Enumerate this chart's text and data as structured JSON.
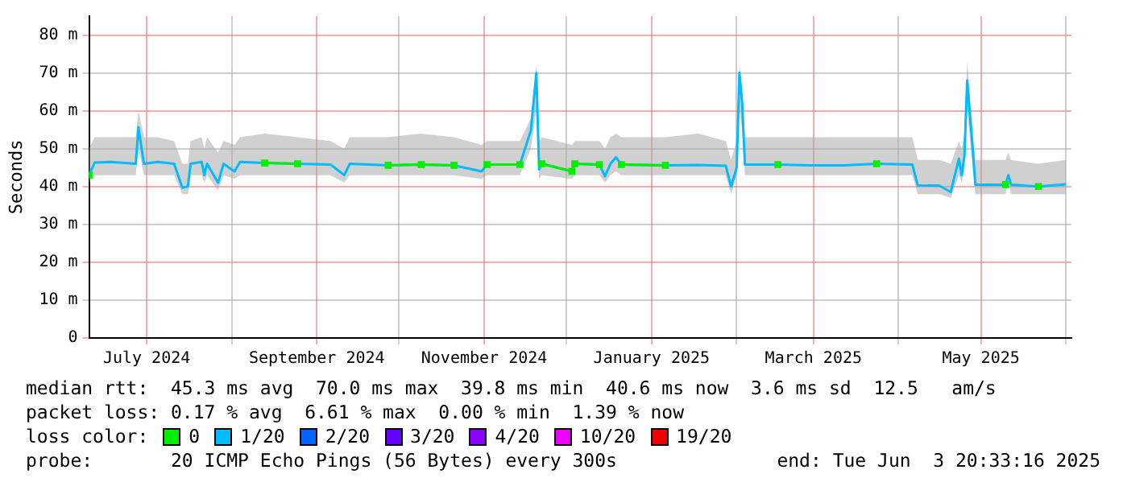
{
  "chart_data": {
    "type": "line",
    "ylabel": "Seconds",
    "x": [
      "2024-06-10",
      "2024-06-12",
      "2024-06-18",
      "2024-06-27",
      "2024-06-28",
      "2024-06-30",
      "2024-07-05",
      "2024-07-11",
      "2024-07-14",
      "2024-07-16",
      "2024-07-17",
      "2024-07-21",
      "2024-07-22",
      "2024-07-23",
      "2024-07-27",
      "2024-07-29",
      "2024-08-02",
      "2024-08-04",
      "2024-08-13",
      "2024-08-25",
      "2024-09-06",
      "2024-09-11",
      "2024-09-13",
      "2024-09-27",
      "2024-10-09",
      "2024-10-21",
      "2024-10-31",
      "2024-11-02",
      "2024-11-14",
      "2024-11-18",
      "2024-11-20",
      "2024-11-21",
      "2024-11-22",
      "2024-12-03",
      "2024-12-04",
      "2024-12-13",
      "2024-12-15",
      "2024-12-17",
      "2024-12-19",
      "2024-12-21",
      "2025-01-06",
      "2025-01-18",
      "2025-01-28",
      "2025-01-30",
      "2025-02-01",
      "2025-02-02",
      "2025-02-03",
      "2025-02-04",
      "2025-02-16",
      "2025-02-28",
      "2025-03-12",
      "2025-03-24",
      "2025-04-06",
      "2025-04-08",
      "2025-04-16",
      "2025-04-20",
      "2025-04-23",
      "2025-04-24",
      "2025-04-25",
      "2025-04-26",
      "2025-04-28",
      "2025-04-29",
      "2025-05-10",
      "2025-05-11",
      "2025-05-12",
      "2025-05-22",
      "2025-06-01"
    ],
    "series": [
      {
        "name": "0",
        "color": "#00ee00",
        "marker": "square",
        "values": [
          43,
          null,
          null,
          null,
          null,
          null,
          null,
          null,
          null,
          null,
          null,
          null,
          null,
          null,
          null,
          null,
          null,
          null,
          46.2,
          46,
          null,
          null,
          null,
          45.6,
          45.8,
          45.6,
          null,
          45.8,
          45.8,
          null,
          null,
          null,
          46,
          44,
          46,
          45.8,
          null,
          null,
          null,
          45.8,
          45.6,
          null,
          null,
          null,
          null,
          null,
          null,
          null,
          45.8,
          null,
          null,
          46,
          null,
          null,
          null,
          null,
          null,
          null,
          null,
          null,
          null,
          null,
          40.5,
          null,
          null,
          40,
          null
        ]
      },
      {
        "name": "1/20",
        "color": "#00bbff",
        "values": [
          43,
          46.3,
          46.5,
          46,
          55.6,
          46,
          46.5,
          46,
          39.7,
          40,
          46,
          46.5,
          43,
          46,
          41,
          46,
          44,
          46.5,
          46.2,
          46,
          45.8,
          43,
          46,
          45.6,
          45.8,
          45.6,
          44,
          45.8,
          45.8,
          54.8,
          70,
          44.5,
          46,
          44,
          46,
          45.8,
          42.7,
          46,
          47.7,
          45.8,
          45.6,
          45.7,
          45.5,
          40,
          45,
          70,
          62,
          45.8,
          45.8,
          45.6,
          45.6,
          46,
          45.8,
          40.3,
          40.2,
          38.5,
          47.4,
          43,
          48,
          68,
          50,
          40.5,
          40.5,
          43,
          40.5,
          40,
          40.6
        ],
        "lower": [
          41,
          43,
          43,
          43,
          50,
          43,
          43,
          43,
          38,
          38,
          43,
          43,
          41,
          43,
          39,
          43,
          42,
          43,
          43,
          43,
          43,
          41,
          43,
          43,
          43,
          43,
          42,
          43,
          43,
          50,
          60,
          42,
          43,
          42,
          43,
          43,
          41,
          43,
          44,
          43,
          43,
          43,
          43,
          38,
          43,
          60,
          55,
          43,
          43,
          43,
          43,
          43,
          43,
          38,
          38,
          37,
          43,
          41,
          44,
          60,
          45,
          38,
          38,
          41,
          38,
          38,
          38
        ],
        "upper": [
          50,
          53,
          53,
          53,
          60,
          53,
          53,
          52,
          46,
          46,
          52,
          53,
          50,
          53,
          49,
          52,
          51,
          53,
          54,
          53,
          52,
          50,
          53,
          53,
          54,
          53,
          51,
          52,
          52,
          58,
          72,
          52,
          53,
          51,
          52,
          52,
          50,
          53,
          54,
          53,
          53,
          54,
          52,
          47,
          52,
          72,
          66,
          53,
          53,
          53,
          53,
          53,
          53,
          47,
          47,
          46,
          52,
          50,
          54,
          73,
          55,
          47,
          47,
          49,
          47,
          46,
          47
        ]
      },
      {
        "name": "2/20",
        "color": "#0066ff",
        "values": [
          null,
          null,
          null,
          null,
          null,
          null,
          null,
          null,
          null,
          null,
          null,
          null,
          null,
          null,
          null,
          null,
          null,
          null,
          null,
          null,
          null,
          null,
          null,
          null,
          null,
          null,
          null,
          null,
          null,
          null,
          null,
          null,
          null,
          null,
          null,
          null,
          null,
          null,
          null,
          null,
          null,
          null,
          null,
          null,
          null,
          null,
          null,
          null,
          null,
          null,
          null,
          null,
          null,
          null,
          null,
          null,
          null,
          null,
          null,
          null,
          null,
          null,
          null,
          null,
          null,
          null,
          null
        ]
      },
      {
        "name": "3/20",
        "color": "#6600ff",
        "values": [
          null,
          null,
          null,
          null,
          null,
          null,
          null,
          null,
          null,
          null,
          null,
          null,
          null,
          null,
          null,
          null,
          null,
          null,
          null,
          null,
          null,
          null,
          null,
          null,
          null,
          null,
          null,
          null,
          null,
          null,
          null,
          null,
          null,
          null,
          null,
          null,
          null,
          null,
          null,
          null,
          null,
          null,
          null,
          null,
          null,
          null,
          null,
          null,
          null,
          null,
          null,
          null,
          null,
          null,
          null,
          null,
          null,
          null,
          null,
          null,
          null,
          null,
          null,
          null,
          null,
          null,
          null
        ]
      },
      {
        "name": "4/20",
        "color": "#8800ff",
        "values": [
          null,
          null,
          null,
          null,
          null,
          null,
          null,
          null,
          null,
          null,
          null,
          null,
          null,
          null,
          null,
          null,
          null,
          null,
          null,
          null,
          null,
          null,
          null,
          null,
          null,
          null,
          null,
          null,
          null,
          null,
          null,
          null,
          null,
          null,
          null,
          null,
          null,
          null,
          null,
          null,
          null,
          null,
          null,
          null,
          null,
          null,
          null,
          null,
          null,
          null,
          null,
          null,
          null,
          null,
          null,
          null,
          null,
          null,
          null,
          null,
          null,
          null,
          null,
          null,
          null,
          null,
          null
        ]
      },
      {
        "name": "10/20",
        "color": "#ee00ff",
        "values": [
          null,
          null,
          null,
          null,
          null,
          null,
          null,
          null,
          null,
          null,
          null,
          null,
          null,
          null,
          null,
          null,
          null,
          null,
          null,
          null,
          null,
          null,
          null,
          null,
          null,
          null,
          null,
          null,
          null,
          null,
          null,
          null,
          null,
          null,
          null,
          null,
          null,
          null,
          null,
          null,
          null,
          null,
          null,
          null,
          null,
          null,
          null,
          null,
          null,
          null,
          null,
          null,
          null,
          null,
          null,
          null,
          null,
          null,
          null,
          null,
          null,
          null,
          null,
          null,
          null,
          null,
          null
        ]
      },
      {
        "name": "19/20",
        "color": "#ee0000",
        "values": [
          null,
          null,
          null,
          null,
          null,
          null,
          null,
          null,
          null,
          null,
          null,
          null,
          null,
          null,
          null,
          null,
          null,
          null,
          null,
          null,
          null,
          null,
          null,
          null,
          null,
          null,
          null,
          null,
          null,
          null,
          null,
          null,
          null,
          null,
          null,
          null,
          null,
          null,
          null,
          null,
          null,
          null,
          null,
          null,
          null,
          null,
          null,
          null,
          null,
          null,
          null,
          null,
          null,
          null,
          null,
          null,
          null,
          null,
          null,
          null,
          null,
          null,
          null,
          null,
          null,
          null,
          null
        ]
      }
    ],
    "legend": "bottom",
    "legend_title": "loss color:",
    "xlim": [
      "2024-06-10",
      "2025-06-03"
    ],
    "xticks": [
      {
        "value": "2024-07-01",
        "label": "July 2024"
      },
      {
        "value": "2024-08-01",
        "label": null
      },
      {
        "value": "2024-09-01",
        "label": "September 2024"
      },
      {
        "value": "2024-10-01",
        "label": null
      },
      {
        "value": "2024-11-01",
        "label": "November 2024"
      },
      {
        "value": "2024-12-01",
        "label": null
      },
      {
        "value": "2025-01-01",
        "label": "January 2025"
      },
      {
        "value": "2025-02-01",
        "label": null
      },
      {
        "value": "2025-03-01",
        "label": "March 2025"
      },
      {
        "value": "2025-04-01",
        "label": null
      },
      {
        "value": "2025-05-01",
        "label": "May 2025"
      },
      {
        "value": "2025-06-01",
        "label": null
      }
    ],
    "ylim": [
      0,
      85
    ],
    "yticks": [
      0,
      {
        "value": 10,
        "label": "10 m"
      },
      {
        "value": 20,
        "label": "20 m"
      },
      {
        "value": 30,
        "label": "30 m"
      },
      {
        "value": 40,
        "label": "40 m"
      },
      {
        "value": 50,
        "label": "50 m"
      },
      {
        "value": 60,
        "label": "60 m"
      },
      {
        "value": 70,
        "label": "70 m"
      },
      {
        "value": 80,
        "label": "80 m"
      }
    ],
    "grid": true,
    "line_style": "solid",
    "annotations": [
      "median rtt:  45.3 ms avg  70.0 ms max  39.8 ms min  40.6 ms now  3.6 ms sd  12.5   am/s",
      "packet loss: 0.17 % avg  6.61 % max  0.00 % min  1.39 % now",
      "probe:       20 ICMP Echo Pings (56 Bytes) every 300s",
      "end: Tue Jun  3 20:33:16 2025"
    ]
  }
}
